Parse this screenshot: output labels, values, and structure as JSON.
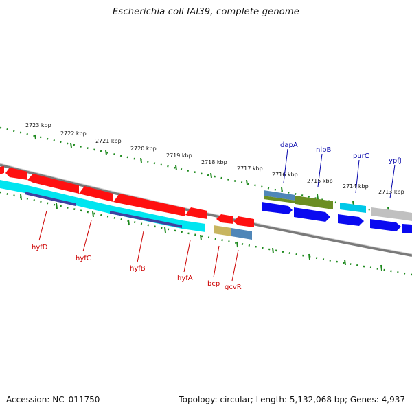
{
  "title": "Escherichia coli IAI39, complete genome",
  "footer": {
    "accession": "Accession: NC_011750",
    "summary": "Topology: circular; Length: 5,132,068 bp; Genes: 4,937"
  },
  "colors": {
    "backbone": "#7a7a7a",
    "tick": "#1e8a1e",
    "red": "#ff1010",
    "cyan": "#00e5f0",
    "navy": "#4040a0",
    "blue": "#0a0af0",
    "olive": "#6b8e23",
    "steel": "#4f86b8",
    "khaki": "#c8b560",
    "gray": "#c0c0c0",
    "label_red": "#cc0000",
    "label_blue": "#0000aa"
  },
  "ruler": {
    "labels": [
      "2723 kbp",
      "2722 kbp",
      "2721 kbp",
      "2720 kbp",
      "2719 kbp",
      "2718 kbp",
      "2717 kbp",
      "2716 kbp",
      "2715 kbp",
      "2714 kbp",
      "2713 kbp"
    ]
  },
  "genes_below": [
    "hyfD",
    "hyfC",
    "hyfB",
    "hyfA",
    "bcp",
    "gcvR"
  ],
  "genes_above": [
    "dapA",
    "nlpB",
    "purC",
    "ypfJ"
  ]
}
